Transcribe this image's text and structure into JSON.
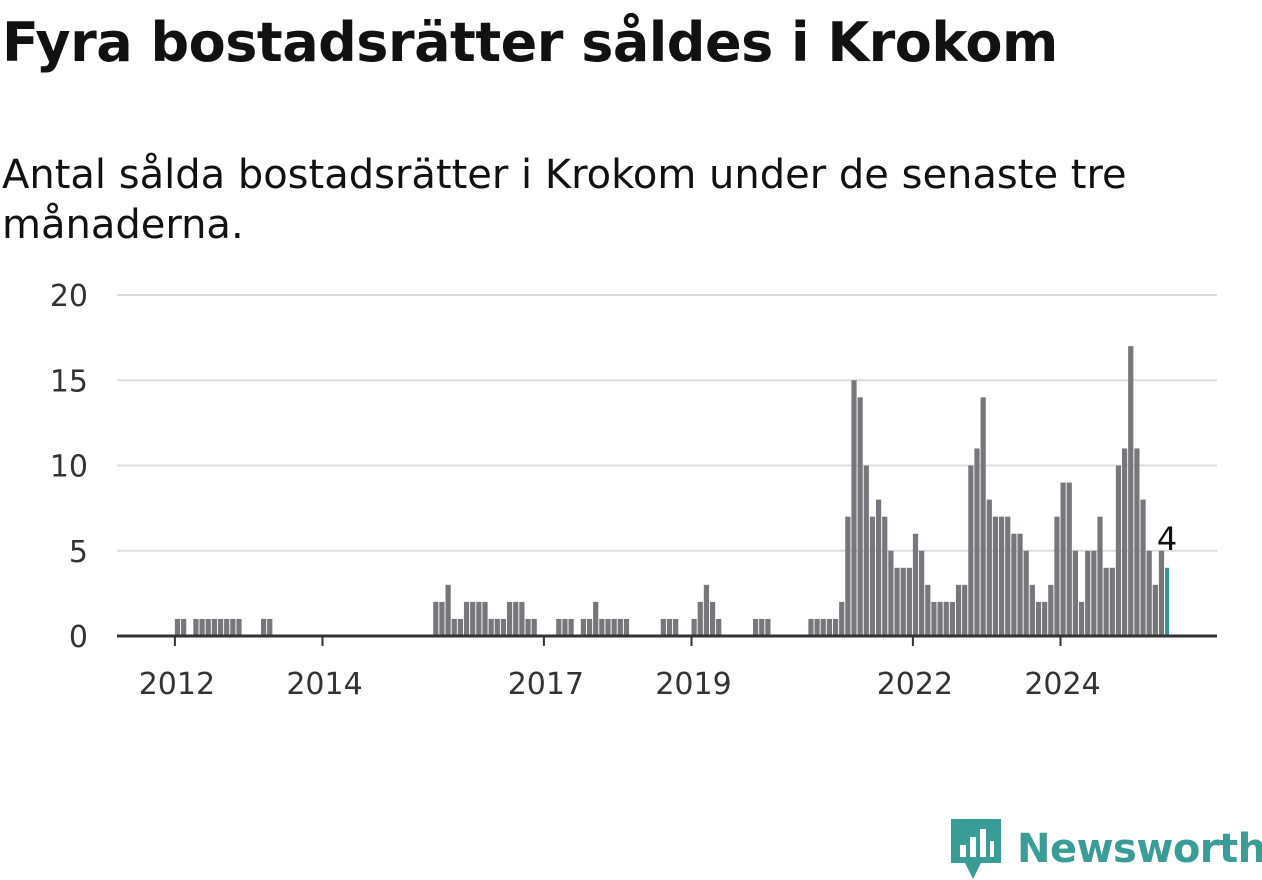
{
  "title": "Fyra bostadsrätter såldes i Krokom",
  "subtitle": "Antal sålda bostadsrätter i Krokom under de senaste tre månaderna.",
  "brand": {
    "name": "Newsworthy",
    "color": "#3a9c96"
  },
  "chart_data": {
    "type": "bar",
    "ylim": [
      0,
      20
    ],
    "y_ticks": [
      0,
      5,
      10,
      15,
      20
    ],
    "x_ticks": [
      "2012",
      "2014",
      "2017",
      "2019",
      "2022",
      "2024"
    ],
    "grid": true,
    "colors": {
      "bar": "#77767b",
      "highlight": "#2a9c96",
      "grid": "#dddddd",
      "axis": "#333333"
    },
    "x_start": "2011-07",
    "x_end": "2025-11",
    "series": [
      {
        "values": [
          0,
          0,
          0,
          0,
          0,
          0,
          1,
          1,
          0,
          1,
          1,
          1,
          1,
          1,
          1,
          1,
          1,
          0,
          0,
          0,
          1,
          1,
          0,
          0,
          0,
          0,
          0,
          0,
          0,
          0,
          0,
          0,
          0,
          0,
          0,
          0,
          0,
          0,
          0,
          0,
          0,
          0,
          0,
          0,
          0,
          0,
          0,
          0,
          2,
          2,
          3,
          1,
          1,
          2,
          2,
          2,
          2,
          1,
          1,
          1,
          2,
          2,
          2,
          1,
          1,
          0,
          0,
          0,
          1,
          1,
          1,
          0,
          1,
          1,
          2,
          1,
          1,
          1,
          1,
          1,
          0,
          0,
          0,
          0,
          0,
          1,
          1,
          1,
          0,
          0,
          1,
          2,
          3,
          2,
          1,
          0,
          0,
          0,
          0,
          0,
          1,
          1,
          1,
          0,
          0,
          0,
          0,
          0,
          0,
          1,
          1,
          1,
          1,
          1,
          2,
          7,
          15,
          14,
          10,
          7,
          8,
          7,
          5,
          4,
          4,
          4,
          6,
          5,
          3,
          2,
          2,
          2,
          2,
          3,
          3,
          10,
          11,
          14,
          8,
          7,
          7,
          7,
          6,
          6,
          5,
          3,
          2,
          2,
          3,
          7,
          9,
          9,
          5,
          2,
          5,
          5,
          7,
          4,
          4,
          10,
          11,
          17,
          11,
          8,
          5,
          3,
          5,
          4
        ]
      }
    ],
    "last_value_label": "4"
  }
}
